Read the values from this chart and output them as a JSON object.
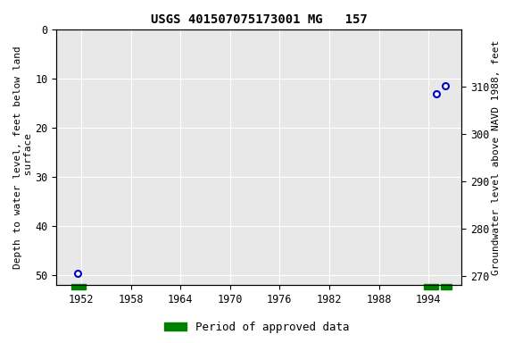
{
  "title": "USGS 401507075173001 MG   157",
  "ylabel_left": "Depth to water level, feet below land\n surface",
  "ylabel_right": "Groundwater level above NAVD 1988, feet",
  "xlim": [
    1949.0,
    1998.0
  ],
  "ylim_left_top": 0,
  "ylim_left_bottom": 52,
  "ylim_right_bottom": 268,
  "ylim_right_top": 322,
  "xticks": [
    1952,
    1958,
    1964,
    1970,
    1976,
    1982,
    1988,
    1994
  ],
  "yticks_left": [
    0,
    10,
    20,
    30,
    40,
    50
  ],
  "yticks_right": [
    270,
    280,
    290,
    300,
    310
  ],
  "data_points": [
    {
      "x": 1951.5,
      "y_depth": 49.5
    },
    {
      "x": 1995.0,
      "y_depth": 13.0
    },
    {
      "x": 1996.0,
      "y_depth": 11.5
    }
  ],
  "period_bars": [
    {
      "x_start": 1950.8,
      "x_end": 1952.5
    },
    {
      "x_start": 1993.5,
      "x_end": 1995.2
    },
    {
      "x_start": 1995.5,
      "x_end": 1996.8
    }
  ],
  "point_color": "#0000cc",
  "period_color": "#008000",
  "background_color": "#ffffff",
  "plot_bg_color": "#e8e8e8",
  "grid_color": "#ffffff",
  "title_fontsize": 10,
  "axis_label_fontsize": 8,
  "tick_fontsize": 8.5,
  "legend_fontsize": 9
}
